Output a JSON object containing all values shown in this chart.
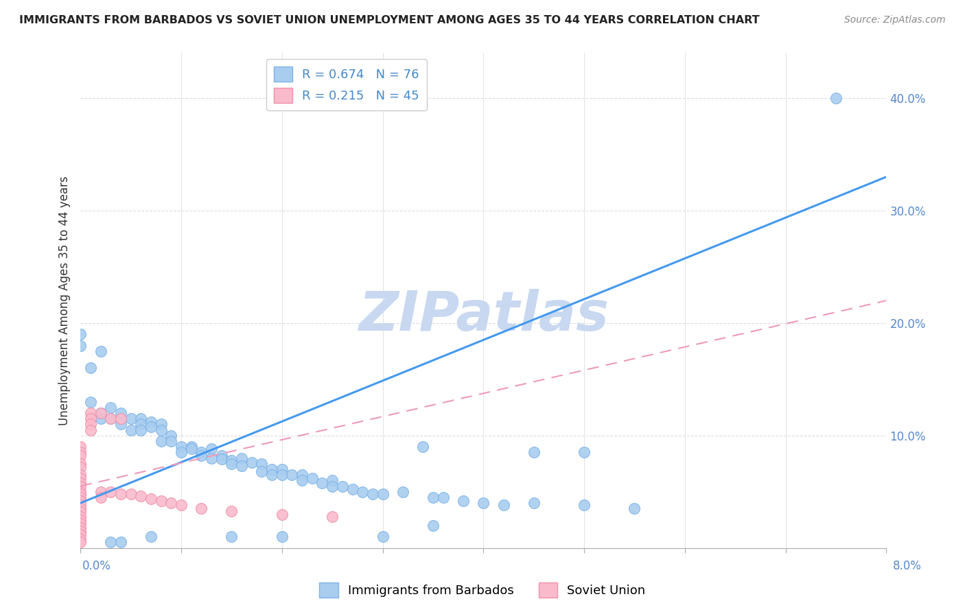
{
  "title": "IMMIGRANTS FROM BARBADOS VS SOVIET UNION UNEMPLOYMENT AMONG AGES 35 TO 44 YEARS CORRELATION CHART",
  "source": "Source: ZipAtlas.com",
  "ylabel": "Unemployment Among Ages 35 to 44 years",
  "xlim": [
    0,
    0.08
  ],
  "ylim": [
    0,
    0.44
  ],
  "barbados_color": "#A8CDEF",
  "barbados_edge": "#7EB3E8",
  "soviet_color": "#F9BBCC",
  "soviet_edge": "#F090AA",
  "barbados_R": 0.674,
  "barbados_N": 76,
  "soviet_R": 0.215,
  "soviet_N": 45,
  "legend_label_barbados": "Immigrants from Barbados",
  "legend_label_soviet": "Soviet Union",
  "watermark": "ZIPatlas",
  "watermark_color": "#C8D8F0",
  "trendline_barbados_color": "#4499EE",
  "trendline_soviet_color": "#EE99BB",
  "barbados_trend_x": [
    0.0,
    0.08
  ],
  "barbados_trend_y": [
    0.04,
    0.33
  ],
  "soviet_trend_x": [
    0.0,
    0.08
  ],
  "soviet_trend_y": [
    0.055,
    0.22
  ],
  "yticks": [
    0.0,
    0.1,
    0.2,
    0.3,
    0.4
  ],
  "ytick_labels": [
    "",
    "10.0%",
    "20.0%",
    "30.0%",
    "40.0%"
  ],
  "xtick_positions": [
    0.0,
    0.01,
    0.02,
    0.03,
    0.04,
    0.05,
    0.06,
    0.07,
    0.08
  ],
  "barbados_points": [
    [
      0.0,
      0.19
    ],
    [
      0.0,
      0.18
    ],
    [
      0.001,
      0.16
    ],
    [
      0.002,
      0.175
    ],
    [
      0.001,
      0.13
    ],
    [
      0.002,
      0.12
    ],
    [
      0.002,
      0.115
    ],
    [
      0.003,
      0.125
    ],
    [
      0.003,
      0.115
    ],
    [
      0.004,
      0.12
    ],
    [
      0.004,
      0.11
    ],
    [
      0.005,
      0.115
    ],
    [
      0.005,
      0.105
    ],
    [
      0.006,
      0.115
    ],
    [
      0.006,
      0.11
    ],
    [
      0.006,
      0.105
    ],
    [
      0.007,
      0.112
    ],
    [
      0.007,
      0.108
    ],
    [
      0.008,
      0.11
    ],
    [
      0.008,
      0.105
    ],
    [
      0.008,
      0.095
    ],
    [
      0.009,
      0.1
    ],
    [
      0.009,
      0.095
    ],
    [
      0.01,
      0.09
    ],
    [
      0.01,
      0.085
    ],
    [
      0.011,
      0.09
    ],
    [
      0.011,
      0.088
    ],
    [
      0.012,
      0.085
    ],
    [
      0.012,
      0.082
    ],
    [
      0.013,
      0.088
    ],
    [
      0.013,
      0.08
    ],
    [
      0.014,
      0.082
    ],
    [
      0.014,
      0.079
    ],
    [
      0.015,
      0.078
    ],
    [
      0.015,
      0.075
    ],
    [
      0.016,
      0.08
    ],
    [
      0.016,
      0.073
    ],
    [
      0.017,
      0.076
    ],
    [
      0.018,
      0.075
    ],
    [
      0.018,
      0.068
    ],
    [
      0.019,
      0.07
    ],
    [
      0.019,
      0.065
    ],
    [
      0.02,
      0.07
    ],
    [
      0.02,
      0.065
    ],
    [
      0.021,
      0.065
    ],
    [
      0.022,
      0.065
    ],
    [
      0.022,
      0.06
    ],
    [
      0.023,
      0.062
    ],
    [
      0.024,
      0.058
    ],
    [
      0.025,
      0.06
    ],
    [
      0.025,
      0.055
    ],
    [
      0.026,
      0.055
    ],
    [
      0.027,
      0.052
    ],
    [
      0.028,
      0.05
    ],
    [
      0.029,
      0.048
    ],
    [
      0.03,
      0.048
    ],
    [
      0.032,
      0.05
    ],
    [
      0.034,
      0.09
    ],
    [
      0.035,
      0.045
    ],
    [
      0.036,
      0.045
    ],
    [
      0.038,
      0.042
    ],
    [
      0.04,
      0.04
    ],
    [
      0.042,
      0.038
    ],
    [
      0.045,
      0.04
    ],
    [
      0.05,
      0.085
    ],
    [
      0.05,
      0.038
    ],
    [
      0.055,
      0.035
    ],
    [
      0.03,
      0.01
    ],
    [
      0.035,
      0.02
    ],
    [
      0.045,
      0.085
    ],
    [
      0.02,
      0.01
    ],
    [
      0.015,
      0.01
    ],
    [
      0.007,
      0.01
    ],
    [
      0.075,
      0.4
    ],
    [
      0.004,
      0.005
    ],
    [
      0.003,
      0.005
    ]
  ],
  "soviet_points": [
    [
      0.0,
      0.09
    ],
    [
      0.0,
      0.085
    ],
    [
      0.0,
      0.082
    ],
    [
      0.0,
      0.075
    ],
    [
      0.0,
      0.072
    ],
    [
      0.0,
      0.065
    ],
    [
      0.0,
      0.062
    ],
    [
      0.0,
      0.058
    ],
    [
      0.0,
      0.055
    ],
    [
      0.0,
      0.05
    ],
    [
      0.0,
      0.048
    ],
    [
      0.0,
      0.045
    ],
    [
      0.0,
      0.042
    ],
    [
      0.0,
      0.038
    ],
    [
      0.0,
      0.035
    ],
    [
      0.0,
      0.032
    ],
    [
      0.0,
      0.028
    ],
    [
      0.0,
      0.025
    ],
    [
      0.0,
      0.022
    ],
    [
      0.0,
      0.018
    ],
    [
      0.0,
      0.015
    ],
    [
      0.0,
      0.012
    ],
    [
      0.0,
      0.008
    ],
    [
      0.0,
      0.005
    ],
    [
      0.001,
      0.12
    ],
    [
      0.001,
      0.115
    ],
    [
      0.001,
      0.11
    ],
    [
      0.001,
      0.105
    ],
    [
      0.002,
      0.12
    ],
    [
      0.002,
      0.05
    ],
    [
      0.002,
      0.045
    ],
    [
      0.003,
      0.115
    ],
    [
      0.003,
      0.05
    ],
    [
      0.004,
      0.115
    ],
    [
      0.004,
      0.048
    ],
    [
      0.005,
      0.048
    ],
    [
      0.006,
      0.046
    ],
    [
      0.007,
      0.044
    ],
    [
      0.008,
      0.042
    ],
    [
      0.009,
      0.04
    ],
    [
      0.01,
      0.038
    ],
    [
      0.012,
      0.035
    ],
    [
      0.015,
      0.033
    ],
    [
      0.02,
      0.03
    ],
    [
      0.025,
      0.028
    ]
  ]
}
